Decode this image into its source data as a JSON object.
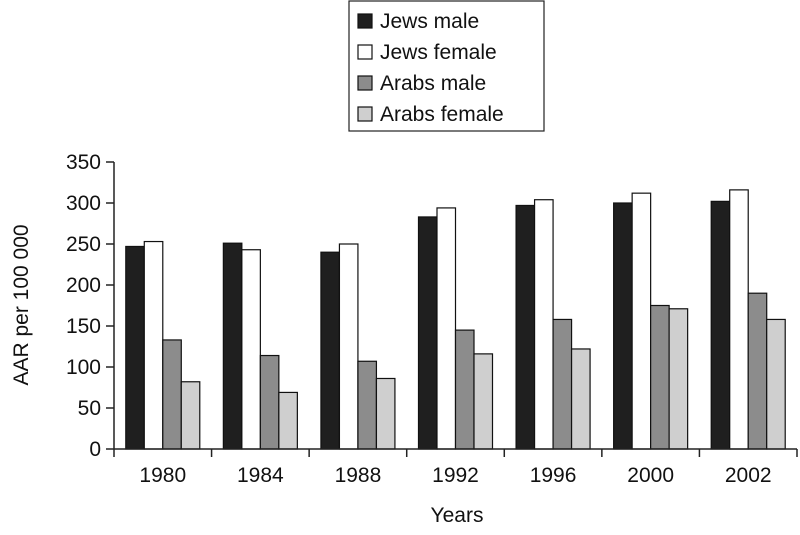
{
  "chart_data": {
    "type": "bar",
    "xlabel": "Years",
    "ylabel": "AAR per 100 000",
    "ylim": [
      0,
      350
    ],
    "yticks": [
      0,
      50,
      100,
      150,
      200,
      250,
      300,
      350
    ],
    "grid": false,
    "legend_position": "top",
    "categories": [
      "1980",
      "1984",
      "1988",
      "1992",
      "1996",
      "2000",
      "2002"
    ],
    "series": [
      {
        "name": "Jews male",
        "color": "#1f1f1f",
        "values": [
          247,
          251,
          240,
          283,
          297,
          300,
          302
        ]
      },
      {
        "name": "Jews female",
        "color": "#ffffff",
        "values": [
          253,
          243,
          250,
          294,
          304,
          312,
          316
        ]
      },
      {
        "name": "Arabs male",
        "color": "#8c8c8c",
        "values": [
          133,
          114,
          107,
          145,
          158,
          175,
          190
        ]
      },
      {
        "name": "Arabs female",
        "color": "#cfcfcf",
        "values": [
          82,
          69,
          86,
          116,
          122,
          171,
          158
        ]
      }
    ]
  }
}
